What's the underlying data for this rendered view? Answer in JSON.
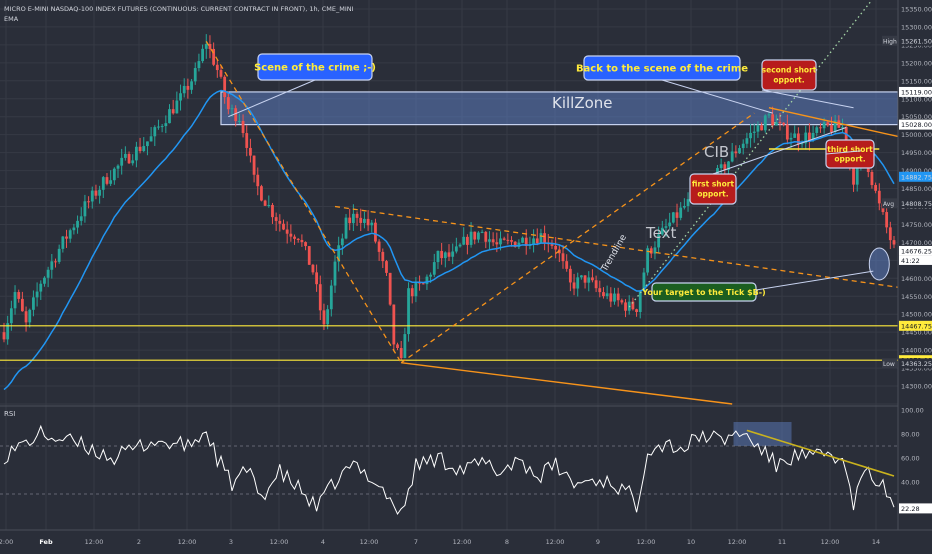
{
  "header": {
    "symbol_line": "MICRO E-MINI NASDAQ-100 INDEX FUTURES (CONTINUOUS: CURRENT CONTRACT IN FRONT), 1h, CME_MINI",
    "indicator": "EMA"
  },
  "price_axis": {
    "ticks": [
      "15350.00",
      "15300.00",
      "15250.00",
      "15200.00",
      "15150.00",
      "15100.00",
      "15050.00",
      "15000.00",
      "14950.00",
      "14900.00",
      "14850.00",
      "14800.00",
      "14750.00",
      "14700.00",
      "14650.00",
      "14600.00",
      "14550.00",
      "14500.00",
      "14450.00",
      "14400.00",
      "14350.00",
      "14300.00",
      "14250.00"
    ],
    "markers": [
      {
        "tag": "High",
        "value": "15261.50",
        "color": "#2a2e39"
      },
      {
        "tag": "",
        "value": "15119.00",
        "color": "#ffffff"
      },
      {
        "tag": "",
        "value": "15028.00",
        "color": "#ffffff"
      },
      {
        "tag": "",
        "value": "14882.75",
        "color": "#2196f3"
      },
      {
        "tag": "Avg",
        "value": "14808.75",
        "color": "#2a2e39"
      },
      {
        "tag": "",
        "value": "14676.25",
        "color": "#ffffff",
        "sub": "41:22"
      },
      {
        "tag": "",
        "value": "14467.75",
        "color": "#ffeb3b"
      },
      {
        "tag": "",
        "value": "14372.00",
        "color": "#ffeb3b"
      },
      {
        "tag": "Low",
        "value": "14363.25",
        "color": "#2a2e39"
      }
    ]
  },
  "rsi_axis": {
    "title": "RSI",
    "ticks": [
      "100.00",
      "80.00",
      "60.00",
      "40.00"
    ],
    "current": "22.28"
  },
  "time_axis": [
    "2:00",
    "Feb",
    "12:00",
    "2",
    "12:00",
    "3",
    "12:00",
    "4",
    "12:00",
    "7",
    "12:00",
    "8",
    "12:00",
    "9",
    "12:00",
    "10",
    "12:00",
    "11",
    "12:00",
    "14"
  ],
  "annotations": {
    "scene": "Scene of the crime ;-)",
    "back": "Back to the scene of the crime",
    "killzone": "KillZone",
    "cib": "CIB",
    "text": "Text",
    "trendline": "Trendline",
    "first": [
      "first short",
      "opport."
    ],
    "second": [
      "second short",
      "opport."
    ],
    "third": [
      "third short",
      "opport."
    ],
    "target": "Your target to the Tick  $B-)"
  },
  "colors": {
    "up": "#26a69a",
    "down": "#ef5350",
    "ema": "#2196f3",
    "level": "#ffeb3b",
    "orange": "#f7931a",
    "box": "#5b7bbd"
  },
  "chart_data": {
    "type": "candlestick",
    "price_range": [
      14250,
      15375
    ],
    "rsi_range": [
      0,
      100
    ],
    "price_path": [
      [
        0,
        14450
      ],
      [
        3,
        14560
      ],
      [
        6,
        14470
      ],
      [
        10,
        14590
      ],
      [
        16,
        14700
      ],
      [
        22,
        14800
      ],
      [
        28,
        14880
      ],
      [
        34,
        14940
      ],
      [
        40,
        14990
      ],
      [
        44,
        15050
      ],
      [
        48,
        15100
      ],
      [
        52,
        15170
      ],
      [
        55,
        15260
      ],
      [
        58,
        15180
      ],
      [
        61,
        15070
      ],
      [
        64,
        15050
      ],
      [
        66,
        14980
      ],
      [
        68,
        14870
      ],
      [
        72,
        14800
      ],
      [
        76,
        14740
      ],
      [
        80,
        14720
      ],
      [
        84,
        14620
      ],
      [
        87,
        14460
      ],
      [
        90,
        14640
      ],
      [
        93,
        14750
      ],
      [
        96,
        14780
      ],
      [
        100,
        14740
      ],
      [
        104,
        14600
      ],
      [
        106,
        14420
      ],
      [
        108,
        14360
      ],
      [
        110,
        14560
      ],
      [
        114,
        14580
      ],
      [
        118,
        14660
      ],
      [
        122,
        14660
      ],
      [
        126,
        14710
      ],
      [
        130,
        14730
      ],
      [
        134,
        14690
      ],
      [
        138,
        14700
      ],
      [
        142,
        14710
      ],
      [
        146,
        14720
      ],
      [
        150,
        14690
      ],
      [
        154,
        14580
      ],
      [
        158,
        14600
      ],
      [
        162,
        14560
      ],
      [
        166,
        14540
      ],
      [
        170,
        14520
      ],
      [
        172,
        14520
      ],
      [
        175,
        14670
      ],
      [
        180,
        14740
      ],
      [
        185,
        14800
      ],
      [
        190,
        14840
      ],
      [
        195,
        14900
      ],
      [
        200,
        14970
      ],
      [
        204,
        15010
      ],
      [
        208,
        15050
      ],
      [
        212,
        15010
      ],
      [
        216,
        14990
      ],
      [
        220,
        15000
      ],
      [
        224,
        15020
      ],
      [
        228,
        15020
      ],
      [
        231,
        14880
      ],
      [
        234,
        14950
      ],
      [
        238,
        14800
      ],
      [
        242,
        14680
      ]
    ],
    "key_levels": {
      "killzone_top": 15119,
      "killzone_bottom": 15028,
      "cib": 14960,
      "support_1": 14467.75,
      "support_2": 14372
    },
    "rsi_path": [
      [
        0,
        62
      ],
      [
        10,
        80
      ],
      [
        20,
        72
      ],
      [
        30,
        60
      ],
      [
        40,
        74
      ],
      [
        50,
        70
      ],
      [
        55,
        82
      ],
      [
        58,
        60
      ],
      [
        62,
        38
      ],
      [
        66,
        50
      ],
      [
        70,
        28
      ],
      [
        75,
        48
      ],
      [
        80,
        35
      ],
      [
        85,
        18
      ],
      [
        90,
        40
      ],
      [
        95,
        54
      ],
      [
        100,
        44
      ],
      [
        104,
        30
      ],
      [
        108,
        12
      ],
      [
        112,
        54
      ],
      [
        118,
        60
      ],
      [
        125,
        50
      ],
      [
        130,
        56
      ],
      [
        135,
        48
      ],
      [
        140,
        60
      ],
      [
        145,
        44
      ],
      [
        150,
        54
      ],
      [
        155,
        38
      ],
      [
        160,
        42
      ],
      [
        165,
        40
      ],
      [
        170,
        30
      ],
      [
        172,
        20
      ],
      [
        175,
        68
      ],
      [
        180,
        72
      ],
      [
        185,
        68
      ],
      [
        190,
        80
      ],
      [
        195,
        74
      ],
      [
        200,
        82
      ],
      [
        205,
        70
      ],
      [
        210,
        54
      ],
      [
        215,
        62
      ],
      [
        220,
        60
      ],
      [
        225,
        64
      ],
      [
        228,
        56
      ],
      [
        231,
        22
      ],
      [
        234,
        48
      ],
      [
        238,
        40
      ],
      [
        242,
        22
      ]
    ]
  }
}
